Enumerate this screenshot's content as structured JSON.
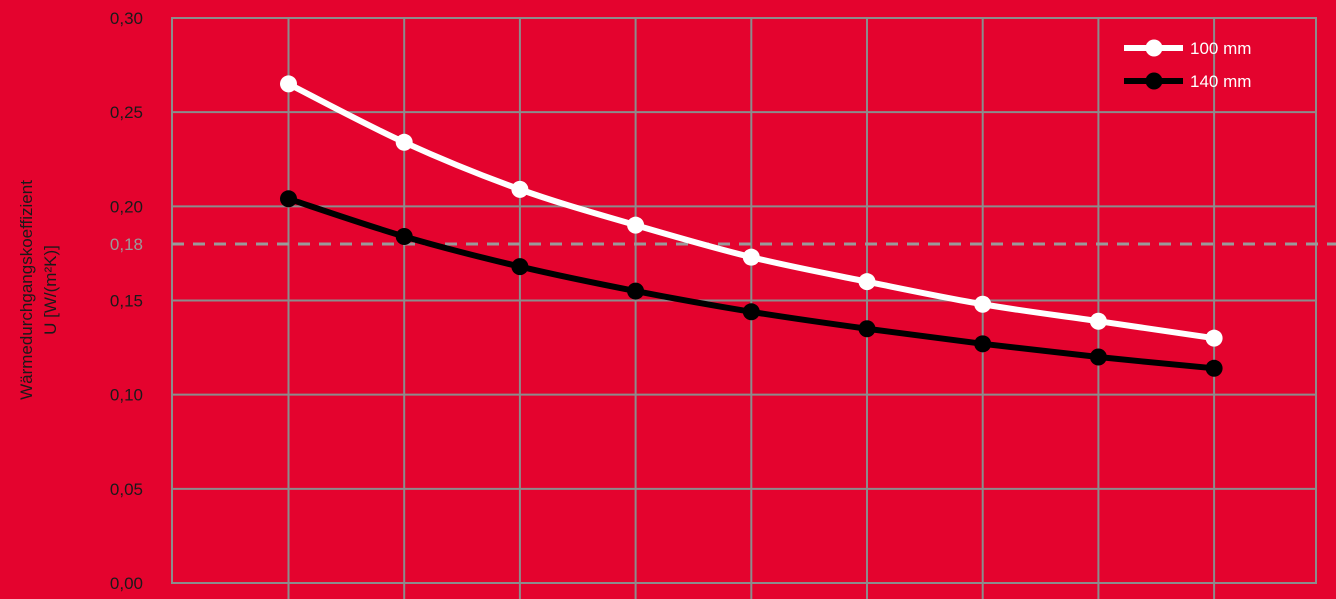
{
  "chart_data": {
    "type": "line",
    "title": "",
    "xlabel": "",
    "ylabel_line1": "Wärmedurchgangskoeffizient",
    "ylabel_line2": "U [W/(m²K)]",
    "ylim": [
      0,
      0.3
    ],
    "y_ticks": [
      "0,00",
      "0,05",
      "0,10",
      "0,15",
      "0,20",
      "0,25",
      "0,30"
    ],
    "x_count": 9,
    "reference_line": {
      "value": 0.18,
      "label": "0,18",
      "color": "#9a9a9a"
    },
    "legend_position": "top-right",
    "series": [
      {
        "name": "100 mm",
        "color": "#ffffff",
        "values": [
          0.265,
          0.234,
          0.209,
          0.19,
          0.173,
          0.16,
          0.148,
          0.139,
          0.13
        ]
      },
      {
        "name": "140 mm",
        "color": "#000000",
        "values": [
          0.204,
          0.184,
          0.168,
          0.155,
          0.144,
          0.135,
          0.127,
          0.12,
          0.114
        ]
      }
    ],
    "grid": true,
    "colors": {
      "background": "#e4032e",
      "grid": "#8c8c8c"
    }
  }
}
